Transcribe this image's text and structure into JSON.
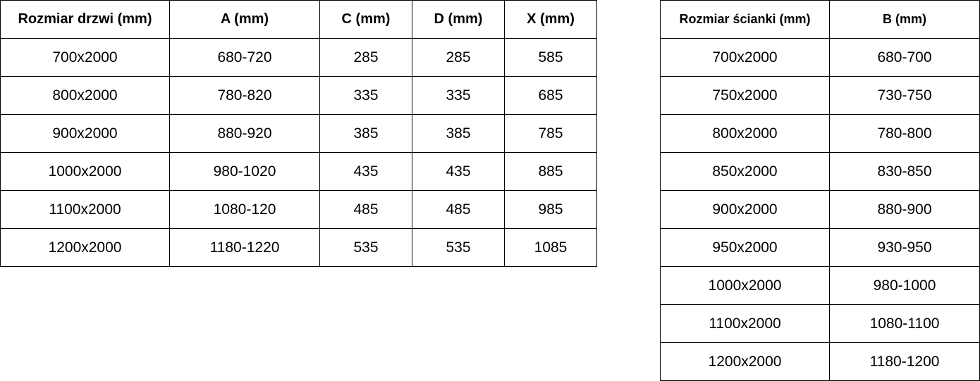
{
  "doors_table": {
    "headers": [
      "Rozmiar drzwi (mm)",
      "A (mm)",
      "C (mm)",
      "D (mm)",
      "X (mm)"
    ],
    "rows": [
      [
        "700x2000",
        "680-720",
        "285",
        "285",
        "585"
      ],
      [
        "800x2000",
        "780-820",
        "335",
        "335",
        "685"
      ],
      [
        "900x2000",
        "880-920",
        "385",
        "385",
        "785"
      ],
      [
        "1000x2000",
        "980-1020",
        "435",
        "435",
        "885"
      ],
      [
        "1100x2000",
        "1080-120",
        "485",
        "485",
        "985"
      ],
      [
        "1200x2000",
        "1180-1220",
        "535",
        "535",
        "1085"
      ]
    ]
  },
  "walls_table": {
    "headers": [
      "Rozmiar ścianki (mm)",
      "B (mm)"
    ],
    "rows": [
      [
        "700x2000",
        "680-700"
      ],
      [
        "750x2000",
        "730-750"
      ],
      [
        "800x2000",
        "780-800"
      ],
      [
        "850x2000",
        "830-850"
      ],
      [
        "900x2000",
        "880-900"
      ],
      [
        "950x2000",
        "930-950"
      ],
      [
        "1000x2000",
        "980-1000"
      ],
      [
        "1100x2000",
        "1080-1100"
      ],
      [
        "1200x2000",
        "1180-1200"
      ]
    ]
  }
}
